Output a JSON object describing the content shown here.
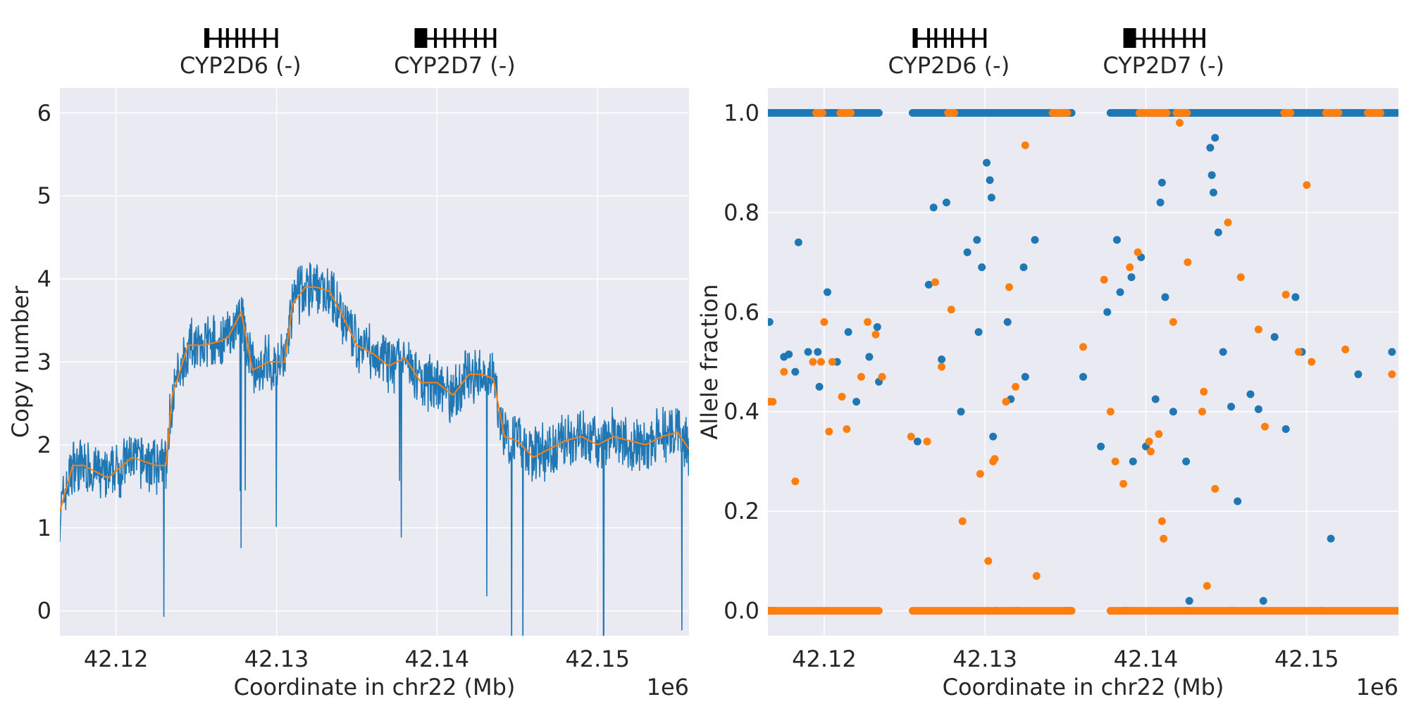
{
  "chart_data": [
    {
      "type": "line",
      "panel": "left",
      "xlabel": "Coordinate in chr22 (Mb)",
      "ylabel": "Copy number",
      "x_offset_label": "1e6",
      "xlim": [
        42116500,
        42155700
      ],
      "ylim": [
        -0.3,
        6.3
      ],
      "xticks": [
        42120000,
        42130000,
        42140000,
        42150000
      ],
      "xtick_labels": [
        "42.12",
        "42.13",
        "42.14",
        "42.15"
      ],
      "yticks": [
        0,
        1,
        2,
        3,
        4,
        5,
        6
      ],
      "ytick_labels": [
        "0",
        "1",
        "2",
        "3",
        "4",
        "5",
        "6"
      ],
      "grid": true,
      "genes": [
        {
          "label": "CYP2D6 (-)",
          "start": 42125500,
          "end": 42130000,
          "exons": [
            0.0,
            0.05,
            0.22,
            0.32,
            0.45,
            0.55,
            0.68,
            0.84,
            1.0
          ]
        },
        {
          "label": "CYP2D7 (-)",
          "start": 42138600,
          "end": 42143600,
          "exons": [
            0.0,
            0.06,
            0.12,
            0.26,
            0.38,
            0.5,
            0.62,
            0.76,
            0.88,
            1.0
          ]
        }
      ],
      "series": [
        {
          "color": "#1f77b4",
          "x": [
            42116500,
            42117300,
            42118000,
            42119500,
            42121000,
            42122500,
            42123100,
            42123500,
            42124500,
            42125500,
            42126500,
            42127000,
            42127800,
            42128500,
            42129500,
            42130500,
            42131000,
            42131800,
            42132500,
            42133300,
            42134000,
            42135000,
            42136000,
            42137000,
            42138000,
            42139000,
            42140000,
            42141000,
            42142000,
            42142800,
            42143500,
            42144200,
            42145000,
            42146000,
            42147000,
            42148000,
            42149000,
            42150000,
            42151000,
            42152000,
            42153000,
            42154000,
            42155000,
            42155700
          ],
          "y": [
            1.2,
            1.75,
            1.75,
            1.6,
            1.85,
            1.75,
            1.75,
            2.6,
            3.2,
            3.2,
            3.25,
            3.3,
            3.6,
            2.9,
            3.0,
            3.0,
            3.7,
            3.9,
            3.9,
            3.85,
            3.6,
            3.2,
            3.1,
            2.95,
            3.05,
            2.75,
            2.75,
            2.6,
            2.85,
            2.85,
            2.8,
            2.1,
            2.05,
            1.85,
            1.95,
            2.05,
            2.1,
            2.0,
            2.1,
            2.05,
            2.0,
            2.1,
            2.15,
            1.95
          ],
          "noise": 0.38
        },
        {
          "color": "#ff7f0e",
          "x": [
            42116500,
            42117300,
            42118000,
            42119500,
            42121000,
            42122500,
            42123100,
            42123500,
            42124500,
            42125500,
            42126500,
            42127000,
            42127800,
            42128500,
            42129500,
            42130500,
            42131000,
            42131800,
            42132500,
            42133300,
            42134000,
            42135000,
            42136000,
            42137000,
            42138000,
            42139000,
            42140000,
            42141000,
            42142000,
            42142800,
            42143500,
            42144200,
            42145000,
            42146000,
            42147000,
            42148000,
            42149000,
            42150000,
            42151000,
            42152000,
            42153000,
            42154000,
            42155000,
            42155700
          ],
          "y": [
            1.2,
            1.75,
            1.75,
            1.6,
            1.85,
            1.75,
            1.75,
            2.6,
            3.2,
            3.2,
            3.25,
            3.3,
            3.6,
            2.9,
            3.0,
            3.0,
            3.7,
            3.9,
            3.9,
            3.85,
            3.6,
            3.2,
            3.1,
            2.95,
            3.05,
            2.75,
            2.75,
            2.6,
            2.85,
            2.85,
            2.8,
            2.1,
            2.05,
            1.85,
            1.95,
            2.05,
            2.1,
            2.0,
            2.1,
            2.05,
            2.0,
            2.1,
            2.15,
            1.95
          ]
        }
      ]
    },
    {
      "type": "scatter",
      "panel": "right",
      "xlabel": "Coordinate in chr22 (Mb)",
      "ylabel": "Allele fraction",
      "x_offset_label": "1e6",
      "xlim": [
        42116500,
        42155700
      ],
      "ylim": [
        -0.05,
        1.05
      ],
      "xticks": [
        42120000,
        42130000,
        42140000,
        42150000
      ],
      "xtick_labels": [
        "42.12",
        "42.13",
        "42.14",
        "42.15"
      ],
      "yticks": [
        0.0,
        0.2,
        0.4,
        0.6,
        0.8,
        1.0
      ],
      "ytick_labels": [
        "0.0",
        "0.2",
        "0.4",
        "0.6",
        "0.8",
        "1.0"
      ],
      "grid": true,
      "genes": [
        {
          "label": "CYP2D6 (-)",
          "start": 42125500,
          "end": 42130000,
          "exons": [
            0.0,
            0.05,
            0.22,
            0.32,
            0.45,
            0.55,
            0.68,
            0.84,
            1.0
          ]
        },
        {
          "label": "CYP2D7 (-)",
          "start": 42138600,
          "end": 42143600,
          "exons": [
            0.0,
            0.06,
            0.12,
            0.26,
            0.38,
            0.5,
            0.62,
            0.76,
            0.88,
            1.0
          ]
        }
      ],
      "series": [
        {
          "color": "#1f77b4",
          "x": [
            42116600,
            42117800,
            42118400,
            42119000,
            42119600,
            42119700,
            42120200,
            42120800,
            42121500,
            42122000,
            42122800,
            42123300,
            42123400,
            42126500,
            42126800,
            42127300,
            42127600,
            42128500,
            42128900,
            42129500,
            42129800,
            42130100,
            42130300,
            42130400,
            42130500,
            42131400,
            42131600,
            42132400,
            42132500,
            42133100,
            42136100,
            42137200,
            42137600,
            42138200,
            42138400,
            42139100,
            42139200,
            42139700,
            42140000,
            42140600,
            42140900,
            42141000,
            42141200,
            42141700,
            42142500,
            42142700,
            42144000,
            42144100,
            42144200,
            42144300,
            42144500,
            42144800,
            42145300,
            42145700,
            42146500,
            42147000,
            42147300,
            42148000,
            42148700,
            42149300,
            42149700,
            42151500,
            42153200,
            42155300,
            42117500,
            42118200,
            42125800,
            42129600
          ],
          "y": [
            0.58,
            0.515,
            0.74,
            0.52,
            0.52,
            0.45,
            0.64,
            0.5,
            0.56,
            0.42,
            0.51,
            0.57,
            0.46,
            0.655,
            0.81,
            0.505,
            0.82,
            0.4,
            0.72,
            0.745,
            0.69,
            0.9,
            0.865,
            0.83,
            0.35,
            0.58,
            0.425,
            0.69,
            0.47,
            0.745,
            0.47,
            0.33,
            0.6,
            0.745,
            0.64,
            0.67,
            0.3,
            0.71,
            0.33,
            0.425,
            0.82,
            0.86,
            0.63,
            0.4,
            0.3,
            0.02,
            0.93,
            0.875,
            0.84,
            0.95,
            0.76,
            0.52,
            0.41,
            0.22,
            0.435,
            0.405,
            0.02,
            0.55,
            0.365,
            0.63,
            0.52,
            0.145,
            0.475,
            0.52,
            0.51,
            0.48,
            0.34,
            0.56
          ],
          "band": {
            "y": 1.0,
            "segments": [
              [
                42116500,
                42123500
              ],
              [
                42125500,
                42135400
              ],
              [
                42137800,
                42155700
              ]
            ]
          },
          "band_low": {
            "y": 0.0,
            "segments": [
              [
                42116500,
                42116900
              ],
              [
                42130600,
                42130800
              ],
              [
                42131900,
                42132100
              ],
              [
                42135000,
                42135300
              ],
              [
                42138600,
                42138900
              ],
              [
                42142400,
                42142700
              ],
              [
                42145300,
                42145500
              ],
              [
                42150800,
                42151000
              ]
            ]
          }
        },
        {
          "color": "#ff7f0e",
          "x": [
            42116800,
            42117500,
            42118200,
            42119800,
            42120000,
            42120300,
            42120500,
            42121100,
            42121400,
            42122300,
            42122700,
            42123200,
            42123600,
            42126400,
            42126900,
            42127300,
            42127900,
            42128600,
            42129700,
            42130500,
            42130600,
            42131300,
            42131500,
            42131900,
            42132500,
            42133200,
            42136100,
            42137400,
            42137800,
            42138100,
            42138600,
            42139000,
            42139500,
            42140200,
            42140800,
            42141000,
            42141100,
            42141700,
            42142100,
            42142600,
            42143600,
            42143800,
            42144300,
            42145100,
            42145900,
            42147000,
            42147400,
            42148700,
            42149500,
            42150000,
            42150300,
            42152400,
            42155300,
            42116600,
            42119300,
            42125400,
            42130200,
            42140300,
            42143500
          ],
          "y": [
            0.42,
            0.48,
            0.26,
            0.5,
            0.58,
            0.36,
            0.5,
            0.43,
            0.365,
            0.47,
            0.58,
            0.555,
            0.47,
            0.34,
            0.66,
            0.49,
            0.605,
            0.18,
            0.275,
            0.3,
            0.305,
            0.42,
            0.65,
            0.45,
            0.935,
            0.07,
            0.53,
            0.665,
            0.4,
            0.3,
            0.255,
            0.69,
            0.72,
            0.34,
            0.355,
            0.18,
            0.145,
            0.58,
            0.98,
            0.7,
            0.44,
            0.05,
            0.245,
            0.78,
            0.67,
            0.565,
            0.37,
            0.635,
            0.52,
            0.855,
            0.5,
            0.525,
            0.475,
            0.42,
            0.5,
            0.35,
            0.1,
            0.32,
            0.4
          ],
          "band": {
            "y": 0.0,
            "segments": [
              [
                42116500,
                42123500
              ],
              [
                42125500,
                42135400
              ],
              [
                42137800,
                42155700
              ]
            ]
          },
          "band_low": {
            "y": 1.0,
            "segments": [
              [
                42119500,
                42120000
              ],
              [
                42121000,
                42121700
              ],
              [
                42127700,
                42128200
              ],
              [
                42134200,
                42135200
              ],
              [
                42139600,
                42141300
              ],
              [
                42141900,
                42142600
              ],
              [
                42148600,
                42149000
              ],
              [
                42151200,
                42152100
              ],
              [
                42153800,
                42154600
              ]
            ]
          }
        }
      ]
    }
  ]
}
